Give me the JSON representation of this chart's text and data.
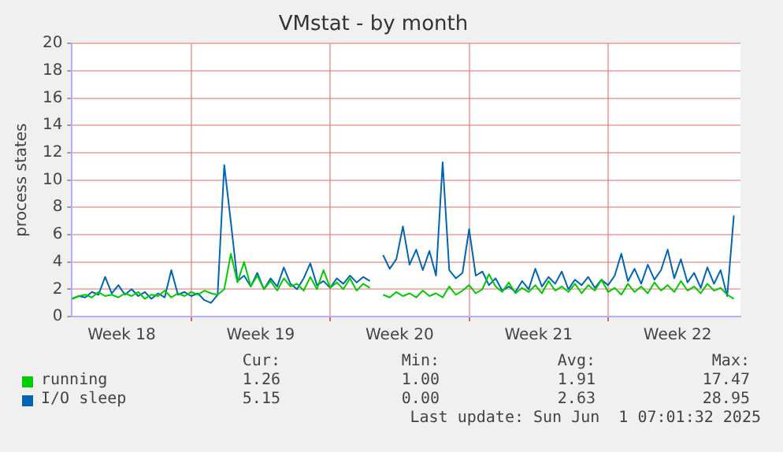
{
  "chart_data": {
    "type": "line",
    "title": "VMstat - by month",
    "ylabel": "process states",
    "x": [
      "2025-04-29T00:00",
      "2025-04-29T08:00",
      "2025-04-29T16:00",
      "2025-04-30T00:00",
      "2025-04-30T08:00",
      "2025-04-30T16:00",
      "2025-05-01T00:00",
      "2025-05-01T08:00",
      "2025-05-01T16:00",
      "2025-05-02T00:00",
      "2025-05-02T08:00",
      "2025-05-02T16:00",
      "2025-05-03T00:00",
      "2025-05-03T08:00",
      "2025-05-03T16:00",
      "2025-05-04T00:00",
      "2025-05-04T08:00",
      "2025-05-04T16:00",
      "2025-05-05T00:00",
      "2025-05-05T08:00",
      "2025-05-05T16:00",
      "2025-05-06T00:00",
      "2025-05-06T08:00",
      "2025-05-06T16:00",
      "2025-05-07T00:00",
      "2025-05-07T08:00",
      "2025-05-07T16:00",
      "2025-05-08T00:00",
      "2025-05-08T08:00",
      "2025-05-08T16:00",
      "2025-05-09T00:00",
      "2025-05-09T08:00",
      "2025-05-09T16:00",
      "2025-05-10T00:00",
      "2025-05-10T08:00",
      "2025-05-10T16:00",
      "2025-05-11T00:00",
      "2025-05-11T08:00",
      "2025-05-11T16:00",
      "2025-05-12T00:00",
      "2025-05-12T08:00",
      "2025-05-12T16:00",
      "2025-05-13T00:00",
      "2025-05-13T08:00",
      "2025-05-13T16:00",
      "2025-05-14T00:00",
      "2025-05-14T08:00",
      "2025-05-14T16:00",
      "2025-05-15T00:00",
      "2025-05-15T08:00",
      "2025-05-15T16:00",
      "2025-05-16T00:00",
      "2025-05-16T08:00",
      "2025-05-16T16:00",
      "2025-05-17T00:00",
      "2025-05-17T08:00",
      "2025-05-17T16:00",
      "2025-05-18T00:00",
      "2025-05-18T08:00",
      "2025-05-18T16:00",
      "2025-05-19T00:00",
      "2025-05-19T08:00",
      "2025-05-19T16:00",
      "2025-05-20T00:00",
      "2025-05-20T08:00",
      "2025-05-20T16:00",
      "2025-05-21T00:00",
      "2025-05-21T08:00",
      "2025-05-21T16:00",
      "2025-05-22T00:00",
      "2025-05-22T08:00",
      "2025-05-22T16:00",
      "2025-05-23T00:00",
      "2025-05-23T08:00",
      "2025-05-23T16:00",
      "2025-05-24T00:00",
      "2025-05-24T08:00",
      "2025-05-24T16:00",
      "2025-05-25T00:00",
      "2025-05-25T08:00",
      "2025-05-25T16:00",
      "2025-05-26T00:00",
      "2025-05-26T08:00",
      "2025-05-26T16:00",
      "2025-05-27T00:00",
      "2025-05-27T08:00",
      "2025-05-27T16:00",
      "2025-05-28T00:00",
      "2025-05-28T08:00",
      "2025-05-28T16:00",
      "2025-05-29T00:00",
      "2025-05-29T08:00",
      "2025-05-29T16:00",
      "2025-05-30T00:00",
      "2025-05-30T08:00",
      "2025-05-30T16:00",
      "2025-05-31T00:00",
      "2025-05-31T08:00",
      "2025-05-31T16:00",
      "2025-06-01T00:00",
      "2025-06-01T08:00"
    ],
    "series": [
      {
        "name": "running",
        "color": "#00cc00",
        "values": [
          1.3,
          1.5,
          1.6,
          1.4,
          1.8,
          1.5,
          1.6,
          1.4,
          1.7,
          1.5,
          1.8,
          1.3,
          1.6,
          1.5,
          1.9,
          1.4,
          1.7,
          1.5,
          1.8,
          1.6,
          1.9,
          1.7,
          1.6,
          2.0,
          4.6,
          2.5,
          4.0,
          2.2,
          3.0,
          2.0,
          2.6,
          1.9,
          2.8,
          2.2,
          2.4,
          1.9,
          2.9,
          2.0,
          3.4,
          2.1,
          2.5,
          2.0,
          2.8,
          1.9,
          2.4,
          2.1,
          null,
          1.6,
          1.4,
          1.8,
          1.5,
          1.7,
          1.4,
          1.9,
          1.5,
          1.7,
          1.4,
          2.2,
          1.6,
          1.9,
          2.3,
          1.7,
          2.0,
          3.1,
          2.2,
          1.8,
          2.5,
          1.7,
          2.1,
          1.8,
          2.3,
          1.7,
          2.6,
          1.9,
          2.2,
          1.8,
          2.4,
          1.7,
          2.3,
          1.9,
          2.7,
          1.8,
          2.1,
          1.6,
          2.4,
          1.8,
          2.2,
          1.7,
          2.5,
          1.9,
          2.3,
          1.8,
          2.6,
          1.9,
          2.2,
          1.7,
          2.4,
          1.9,
          2.1,
          1.6,
          1.3
        ]
      },
      {
        "name": "I/O sleep",
        "color": "#0066b3",
        "values": [
          1.3,
          1.5,
          1.4,
          1.8,
          1.6,
          2.9,
          1.7,
          2.3,
          1.6,
          2.0,
          1.5,
          1.8,
          1.3,
          1.7,
          1.4,
          3.4,
          1.6,
          1.8,
          1.5,
          1.7,
          1.2,
          1.0,
          1.6,
          11.1,
          6.9,
          2.6,
          3.0,
          2.2,
          3.2,
          2.0,
          2.8,
          2.2,
          3.6,
          2.4,
          2.0,
          2.8,
          3.9,
          2.3,
          2.6,
          2.1,
          2.8,
          2.4,
          3.0,
          2.5,
          2.9,
          2.6,
          null,
          4.5,
          3.5,
          4.2,
          6.6,
          3.8,
          4.9,
          3.4,
          4.8,
          3.0,
          11.3,
          3.4,
          2.8,
          3.2,
          6.4,
          3.0,
          3.3,
          2.3,
          2.8,
          1.9,
          2.2,
          1.8,
          2.6,
          2.0,
          3.5,
          2.2,
          2.9,
          2.4,
          3.3,
          2.0,
          2.7,
          2.3,
          2.9,
          2.1,
          2.7,
          2.3,
          3.0,
          4.6,
          2.6,
          3.5,
          2.4,
          3.8,
          2.7,
          3.4,
          4.9,
          2.8,
          4.2,
          2.5,
          3.2,
          2.1,
          3.6,
          2.4,
          3.4,
          1.5,
          7.4
        ]
      }
    ],
    "xlim": [
      "2025-04-29T00:00",
      "2025-06-01T16:00"
    ],
    "xticks": [
      {
        "value": "2025-05-01T12:00",
        "label": "Week 18"
      },
      {
        "value": "2025-05-05",
        "label": null
      },
      {
        "value": "2025-05-08T12:00",
        "label": "Week 19"
      },
      {
        "value": "2025-05-12",
        "label": null
      },
      {
        "value": "2025-05-15T12:00",
        "label": "Week 20"
      },
      {
        "value": "2025-05-19",
        "label": null
      },
      {
        "value": "2025-05-22T12:00",
        "label": "Week 21"
      },
      {
        "value": "2025-05-26",
        "label": null
      },
      {
        "value": "2025-05-29T12:00",
        "label": "Week 22"
      }
    ],
    "ylim": [
      0,
      20
    ],
    "yticks": [
      0,
      2,
      4,
      6,
      8,
      10,
      12,
      14,
      16,
      18,
      20
    ],
    "grid": true,
    "legend": "bottom",
    "marker": "none",
    "line_style": "solid",
    "annotations": [
      "Cur:",
      "Min:",
      "Avg:",
      "Max:",
      "1.26",
      "1.00",
      "1.91",
      "17.47",
      "5.15",
      "0.00",
      "2.63",
      "28.95",
      "Last update: Sun Jun  1 07:01:32 2025"
    ]
  }
}
